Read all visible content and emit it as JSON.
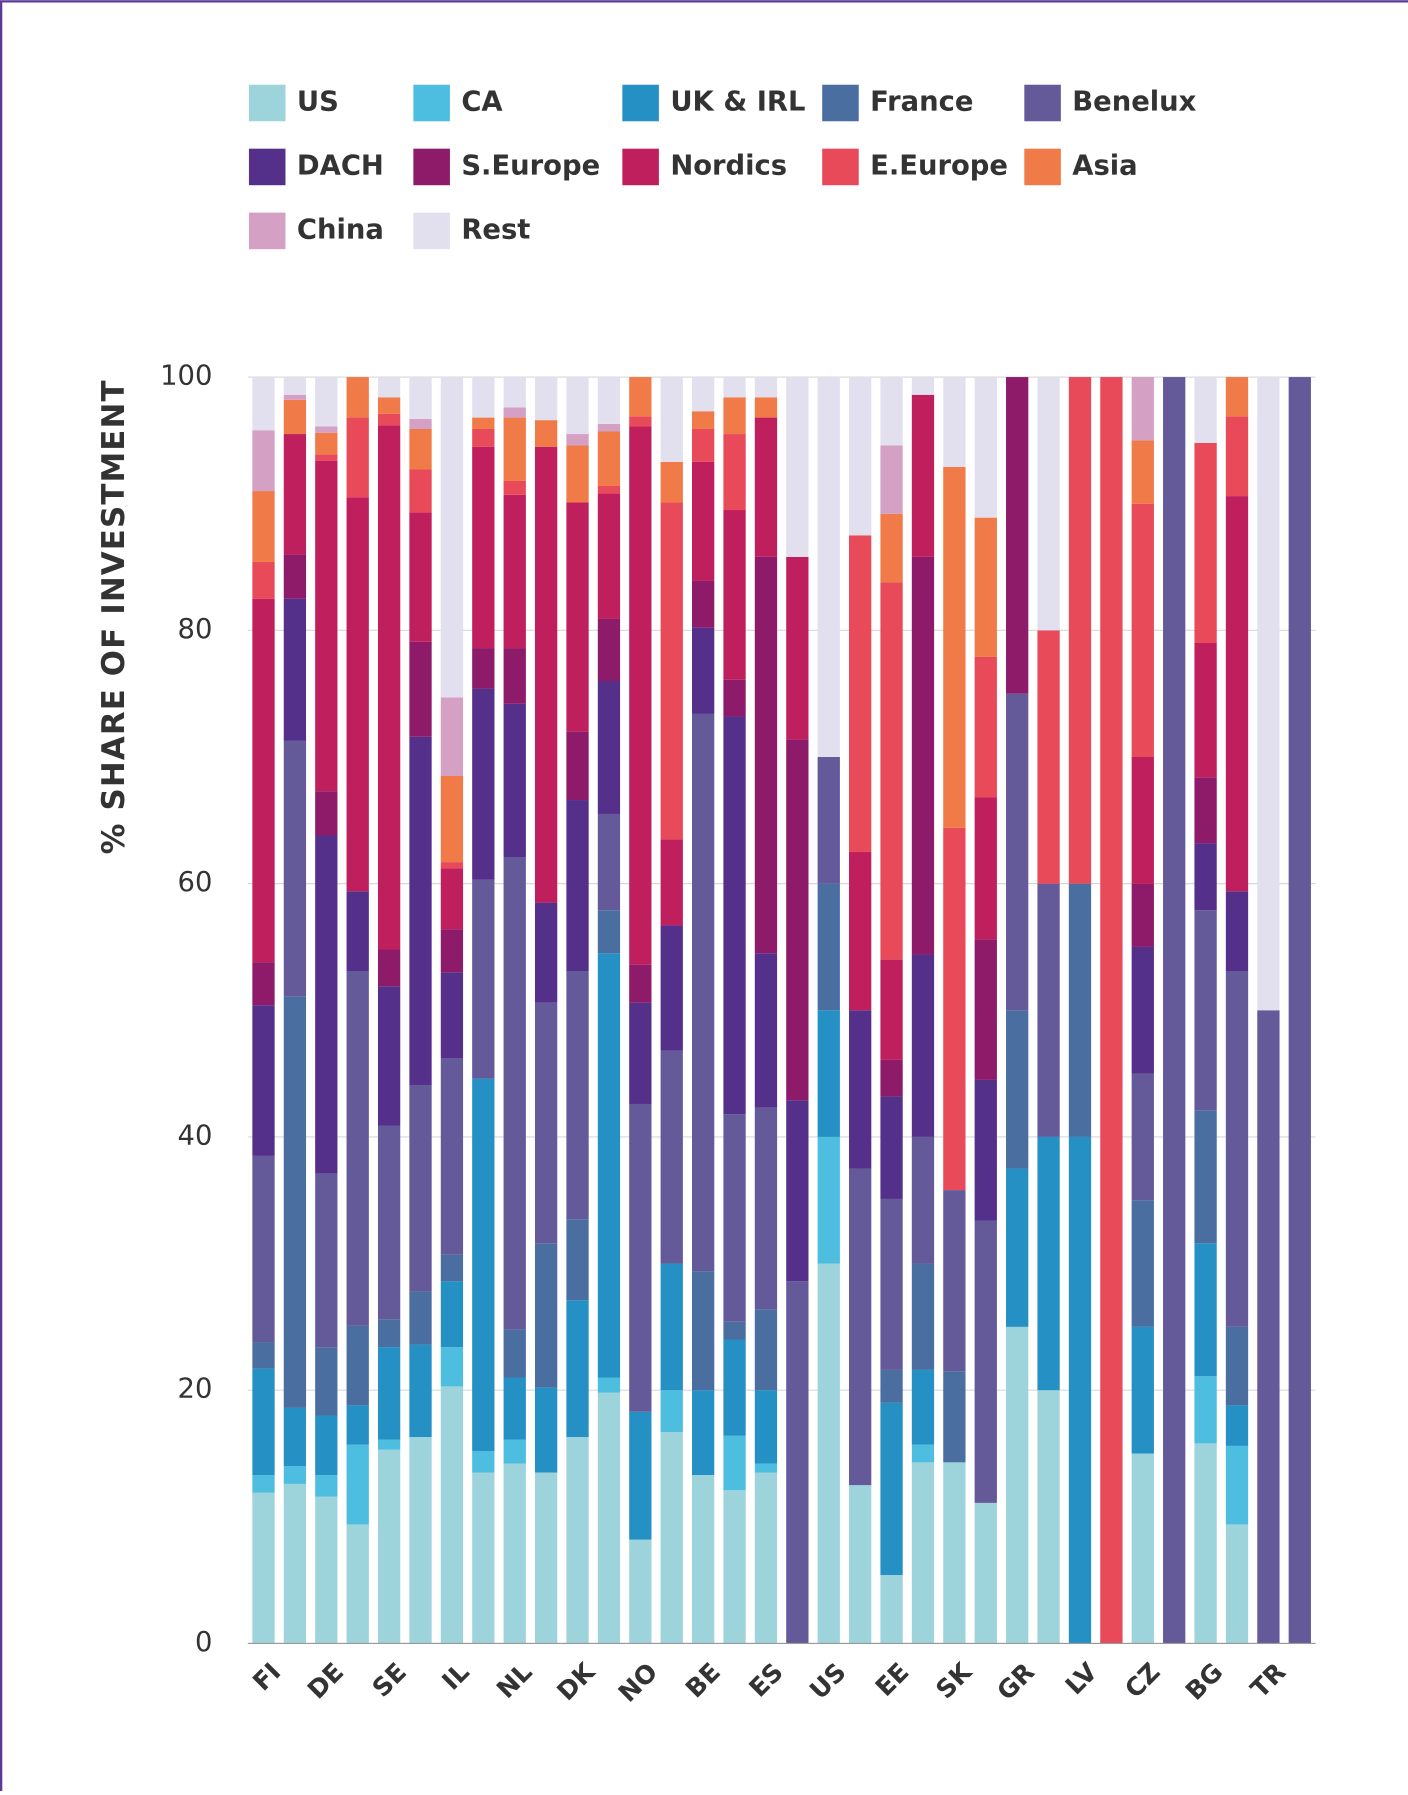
{
  "chart_data": {
    "type": "stacked_bar",
    "y_label": "% SHARE OF INVESTMENT",
    "categories": [
      "FI",
      null,
      "DE",
      null,
      "SE",
      null,
      "IL",
      null,
      "NL",
      null,
      "DK",
      null,
      "NO",
      null,
      "BE",
      null,
      "ES",
      null,
      "US",
      null,
      "EE",
      null,
      "SK",
      null,
      "GR",
      null,
      "LV",
      null,
      "CZ",
      null,
      "BG",
      null,
      "TR",
      null
    ],
    "ylim": [
      0,
      100
    ],
    "yticks": [
      0,
      20,
      40,
      60,
      80,
      100
    ],
    "grid": true,
    "series": [
      {
        "name": "US",
        "color": "#9dd4dc",
        "values": [
          11.9,
          12.6,
          11.6,
          9.4,
          15.3,
          16.3,
          20.3,
          13.5,
          14.2,
          13.5,
          16.3,
          19.8,
          8.2,
          16.7,
          13.3,
          12.1,
          13.5,
          0,
          30,
          12.5,
          5.4,
          14.3,
          14.3,
          11.1,
          25,
          20,
          0,
          0,
          15,
          0,
          15.8,
          9.4,
          0,
          0
        ]
      },
      {
        "name": "CA",
        "color": "#4dbde0",
        "values": [
          1.4,
          1.4,
          1.7,
          6.3,
          0.8,
          0,
          3.1,
          1.7,
          1.9,
          0,
          0,
          1.2,
          0,
          3.3,
          0,
          4.3,
          0.7,
          0,
          10,
          0,
          0,
          1.4,
          0,
          0,
          0,
          0,
          0,
          0,
          0,
          0,
          5.3,
          6.2,
          0,
          0
        ]
      },
      {
        "name": "UK & IRL",
        "color": "#2490c4",
        "values": [
          8.4,
          4.6,
          4.7,
          3.1,
          7.3,
          7.3,
          5.2,
          29.4,
          4.9,
          6.7,
          10.8,
          33.5,
          10.1,
          10,
          6.7,
          7.6,
          5.8,
          0,
          10,
          0,
          13.6,
          5.9,
          0,
          0,
          12.5,
          20,
          40,
          0,
          10,
          0,
          10.5,
          3.2,
          0,
          0
        ]
      },
      {
        "name": "France",
        "color": "#4a6ea0",
        "values": [
          2.1,
          32.5,
          5.4,
          6.3,
          2.2,
          4.2,
          2.1,
          0,
          3.8,
          11.4,
          6.4,
          3.4,
          0,
          0,
          9.4,
          1.4,
          6.4,
          0,
          10,
          0,
          2.6,
          8.4,
          7.2,
          0,
          12.5,
          0,
          20,
          0,
          10,
          0,
          10.5,
          6.2,
          0,
          0
        ]
      },
      {
        "name": "Benelux",
        "color": "#645a9a",
        "values": [
          14.7,
          20.2,
          13.7,
          28,
          15.3,
          16.3,
          15.5,
          15.7,
          37.3,
          19,
          19.6,
          7.6,
          24.3,
          16.8,
          44,
          16.4,
          15.9,
          28.6,
          10,
          25,
          13.5,
          10,
          14.3,
          22.3,
          25,
          20,
          0,
          0,
          10,
          100,
          15.8,
          28.1,
          50,
          100
        ]
      },
      {
        "name": "DACH",
        "color": "#55308a",
        "values": [
          11.9,
          11.2,
          26.7,
          6.3,
          11,
          27.5,
          6.8,
          15.1,
          12.1,
          7.9,
          13.5,
          10.5,
          8,
          9.9,
          6.8,
          31.4,
          12.2,
          14.3,
          0,
          12.5,
          8.1,
          14.4,
          0,
          11.1,
          0,
          0,
          0,
          0,
          10,
          0,
          5.3,
          6.3,
          0,
          0
        ]
      },
      {
        "name": "S.Europe",
        "color": "#8e1a6a",
        "values": [
          3.4,
          3.5,
          3.5,
          0,
          2.9,
          7.5,
          3.4,
          3.2,
          4.4,
          0,
          5.4,
          4.9,
          3,
          0,
          3.7,
          2.9,
          31.3,
          28.5,
          0,
          0,
          2.9,
          31.4,
          0,
          11.1,
          25,
          0,
          0,
          0,
          5,
          0,
          5.2,
          0,
          0,
          0
        ]
      },
      {
        "name": "Nordics",
        "color": "#c01f5e",
        "values": [
          28.7,
          9.5,
          26.1,
          31.1,
          41.4,
          10.2,
          4.8,
          15.9,
          12.1,
          36,
          18.1,
          9.9,
          42.5,
          6.8,
          9.4,
          13.4,
          11,
          14.4,
          0,
          12.5,
          7.9,
          12.8,
          0,
          11.2,
          0,
          0,
          0,
          0,
          10,
          0,
          10.6,
          31.2,
          0,
          0
        ]
      },
      {
        "name": "E.Europe",
        "color": "#e84a5a",
        "values": [
          2.9,
          0,
          0.5,
          6.3,
          0.9,
          3.4,
          0.5,
          1.4,
          1.1,
          0,
          0,
          0.6,
          0.8,
          26.6,
          2.6,
          6,
          0,
          0,
          0,
          25,
          29.8,
          0,
          28.6,
          11.1,
          0,
          20,
          40,
          100,
          20,
          0,
          15.8,
          6.3,
          0,
          0
        ]
      },
      {
        "name": "Asia",
        "color": "#f07a48",
        "values": [
          5.6,
          2.7,
          1.7,
          3.2,
          1.3,
          3.2,
          6.8,
          0.9,
          5,
          2.1,
          4.5,
          4.3,
          3.1,
          3.2,
          1.4,
          2.9,
          1.6,
          0,
          0,
          0,
          5.4,
          0,
          28.5,
          11,
          0,
          0,
          0,
          0,
          5,
          0,
          0,
          3.1,
          0,
          0
        ]
      },
      {
        "name": "China",
        "color": "#d4a0c4",
        "values": [
          4.8,
          0.4,
          0.5,
          0,
          0,
          0.8,
          6.2,
          0,
          0.8,
          0,
          0.9,
          0.6,
          0,
          0,
          0,
          0,
          0,
          0,
          0,
          0,
          5.4,
          0,
          0,
          0,
          0,
          0,
          0,
          0,
          5,
          0,
          0,
          0,
          0,
          0
        ]
      },
      {
        "name": "Rest",
        "color": "#e2e0ee",
        "values": [
          4.2,
          1.4,
          3.9,
          0,
          1.6,
          3.3,
          25.3,
          3.2,
          2.4,
          3.4,
          4.5,
          3.7,
          0,
          6.7,
          2.7,
          1.6,
          1.6,
          14.2,
          30,
          12.5,
          5.4,
          1.4,
          7.1,
          11.1,
          0,
          20,
          0,
          0,
          0,
          0,
          5.2,
          0,
          50,
          0
        ]
      }
    ]
  }
}
